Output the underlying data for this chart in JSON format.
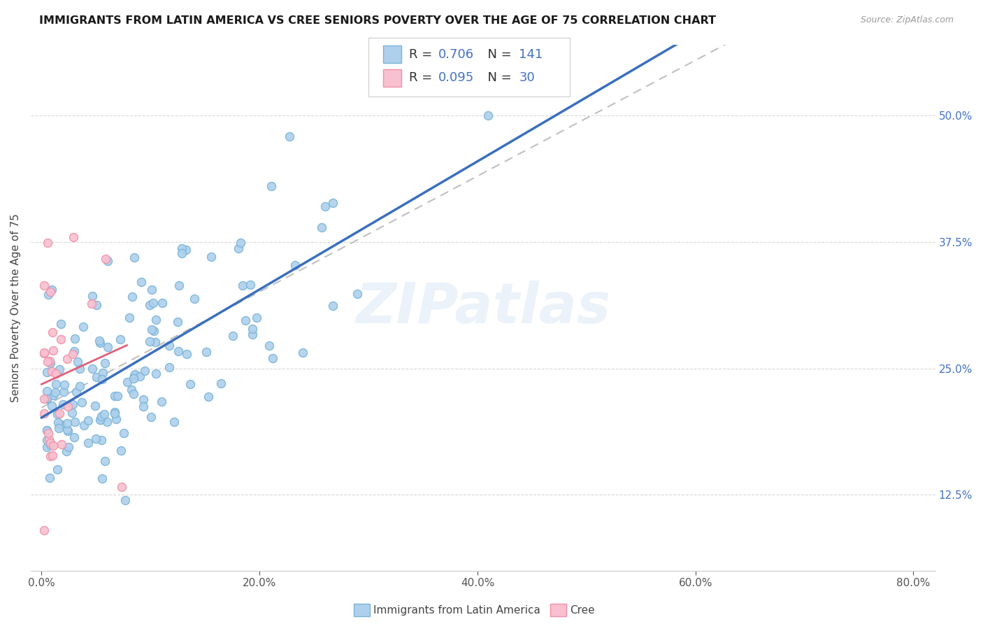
{
  "title": "IMMIGRANTS FROM LATIN AMERICA VS CREE SENIORS POVERTY OVER THE AGE OF 75 CORRELATION CHART",
  "source": "Source: ZipAtlas.com",
  "ylabel": "Seniors Poverty Over the Age of 75",
  "blue_color": "#7ab4d8",
  "blue_fill": "#aed0ec",
  "pink_color": "#f090a8",
  "pink_fill": "#f8c0d0",
  "trend_blue": "#3a6fbe",
  "trend_pink": "#e0607a",
  "trend_dash_color": "#c0c0c0",
  "R_blue": 0.706,
  "N_blue": 141,
  "R_pink": 0.095,
  "N_pink": 30,
  "watermark": "ZIPatlas",
  "xlim": [
    0.0,
    0.82
  ],
  "ylim": [
    0.05,
    0.57
  ],
  "yticks": [
    0.125,
    0.25,
    0.375,
    0.5
  ],
  "ytick_labels": [
    "12.5%",
    "25.0%",
    "37.5%",
    "50.0%"
  ],
  "xticks": [
    0.0,
    0.2,
    0.4,
    0.6,
    0.8
  ],
  "xtick_labels": [
    "0.0%",
    "20.0%",
    "40.0%",
    "60.0%",
    "80.0%"
  ]
}
